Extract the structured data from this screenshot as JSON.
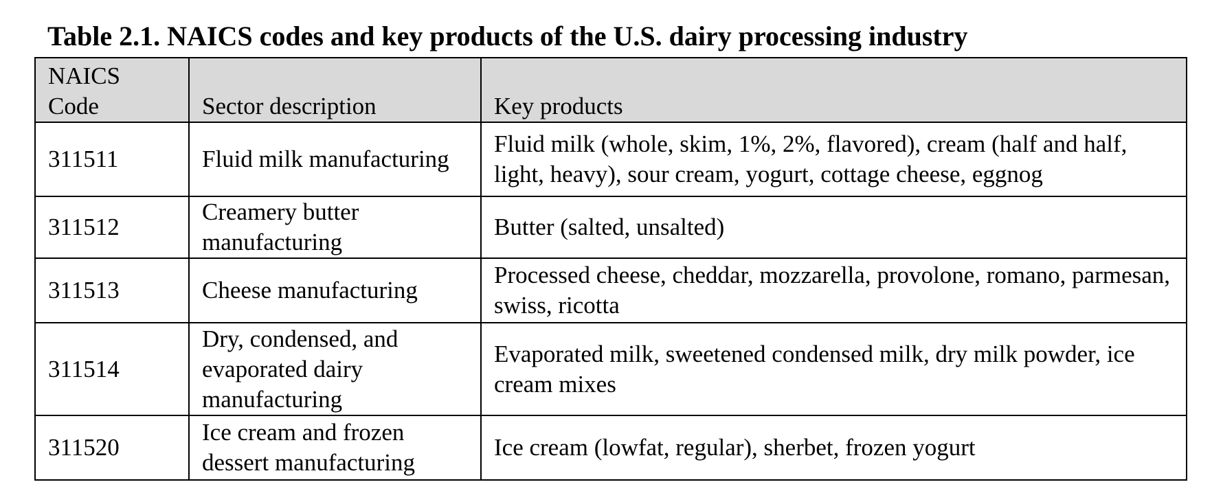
{
  "title": "Table 2.1. NAICS codes and key products of the U.S. dairy processing industry",
  "columns": [
    "NAICS Code",
    "Sector description",
    "Key products"
  ],
  "rows": [
    {
      "code": "311511",
      "sector": "Fluid milk manufacturing",
      "products": "Fluid milk (whole, skim, 1%, 2%, flavored), cream (half and half, light, heavy), sour cream, yogurt, cottage cheese, eggnog"
    },
    {
      "code": "311512",
      "sector": "Creamery butter manufacturing",
      "products": "Butter (salted, unsalted)"
    },
    {
      "code": "311513",
      "sector": "Cheese manufacturing",
      "products": "Processed cheese, cheddar, mozzarella, provolone, romano, parmesan, swiss, ricotta"
    },
    {
      "code": "311514",
      "sector": "Dry, condensed, and evaporated dairy manufacturing",
      "products": "Evaporated milk, sweetened condensed milk, dry milk powder, ice cream mixes"
    },
    {
      "code": "311520",
      "sector": "Ice cream and frozen dessert manufacturing",
      "products": "Ice cream (lowfat, regular), sherbet, frozen yogurt"
    }
  ]
}
